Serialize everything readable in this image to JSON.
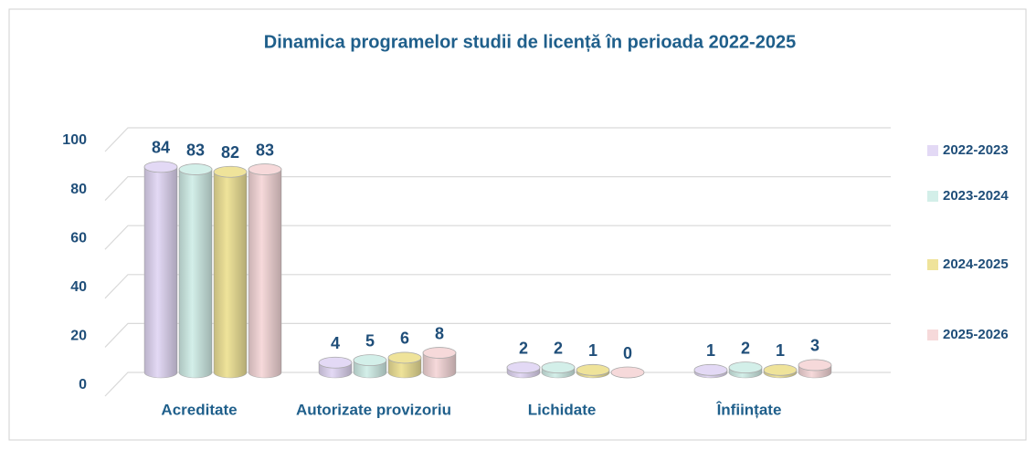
{
  "chart_data": {
    "type": "bar3d",
    "title": "Dinamica programelor studii de licență în perioada 2022-2025",
    "categories": [
      "Acreditate",
      "Autorizate provizoriu",
      "Lichidate",
      "Înființate"
    ],
    "series": [
      {
        "name": "2022-2023",
        "color": "#e3d9f5",
        "values": [
          84,
          4,
          2,
          1
        ]
      },
      {
        "name": "2023-2024",
        "color": "#d3efe9",
        "values": [
          83,
          5,
          2,
          2
        ]
      },
      {
        "name": "2024-2025",
        "color": "#efe39a",
        "values": [
          82,
          6,
          1,
          1
        ]
      },
      {
        "name": "2025-2026",
        "color": "#f6d9da",
        "values": [
          83,
          8,
          0,
          3
        ]
      }
    ],
    "ylim": [
      0,
      100
    ],
    "yticks": [
      0,
      20,
      40,
      60,
      80,
      100
    ],
    "grid": true,
    "legend": "right"
  }
}
